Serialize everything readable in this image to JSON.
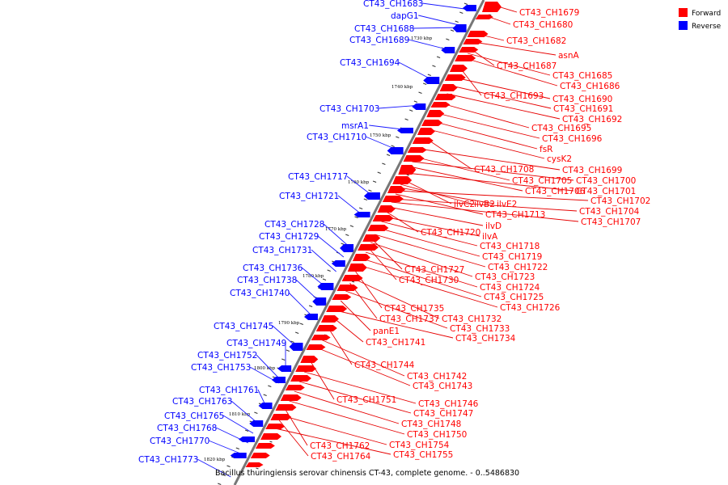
{
  "caption": "Bacillus thuringiensis serovar chinensis CT-43, complete genome. - 0..5486830",
  "legend": [
    {
      "label": "Forward",
      "color": "#ff0000"
    },
    {
      "label": "Reverse",
      "color": "#0000ff"
    }
  ],
  "colors": {
    "forward": "#ff0000",
    "forward_line": "#e60000",
    "reverse": "#0000ff",
    "reverse_line": "#1a1aff",
    "backbone": "#777777"
  },
  "ticks": [
    "1730 kbp",
    "1740 kbp",
    "1750 kbp",
    "1760 kbp",
    "1770 kbp",
    "1780 kbp",
    "1790 kbp",
    "1800 kbp",
    "1810 kbp",
    "1820 kbp"
  ],
  "reverse_labels": [
    "CT43_CH1683",
    "dapG1",
    "CT43_CH1688",
    "CT43_CH1689",
    "CT43_CH1694",
    "CT43_CH1703",
    "msrA1",
    "CT43_CH1710",
    "CT43_CH1717",
    "CT43_CH1721",
    "CT43_CH1728",
    "CT43_CH1729",
    "CT43_CH1731",
    "CT43_CH1736",
    "CT43_CH1738",
    "CT43_CH1740",
    "CT43_CH1745",
    "CT43_CH1749",
    "CT43_CH1752",
    "CT43_CH1753",
    "CT43_CH1761",
    "CT43_CH1763",
    "CT43_CH1765",
    "CT43_CH1768",
    "CT43_CH1770",
    "CT43_CH1773"
  ],
  "forward_labels": [
    "CT43_CH1679",
    "CT43_CH1680",
    "CT43_CH1682",
    "asnA",
    "CT43_CH1687",
    "CT43_CH1685",
    "CT43_CH1686",
    "CT43_CH1693",
    "CT43_CH1690",
    "CT43_CH1691",
    "CT43_CH1692",
    "CT43_CH1695",
    "CT43_CH1696",
    "fsR",
    "cysK2",
    "CT43_CH1708",
    "CT43_CH1699",
    "CT43_CH1705",
    "CT43_CH1700",
    "CT43_CH1706",
    "CT43_CH1701",
    "ilvC2",
    "ilvB2",
    "ilvE2",
    "CT43_CH1702",
    "CT43_CH1713",
    "CT43_CH1704",
    "CT43_CH1707",
    "ilvD",
    "CT43_CH1720",
    "ilvA",
    "CT43_CH1718",
    "CT43_CH1719",
    "CT43_CH1722",
    "CT43_CH1727",
    "CT43_CH1723",
    "CT43_CH1730",
    "CT43_CH1724",
    "CT43_CH1725",
    "CT43_CH1726",
    "CT43_CH1735",
    "CT43_CH1732",
    "CT43_CH1737",
    "CT43_CH1733",
    "panE1",
    "CT43_CH1734",
    "CT43_CH1741",
    "CT43_CH1744",
    "CT43_CH1742",
    "CT43_CH1743",
    "CT43_CH1751",
    "CT43_CH1746",
    "CT43_CH1747",
    "CT43_CH1748",
    "CT43_CH1750",
    "CT43_CH1762",
    "CT43_CH1754",
    "CT43_CH1764",
    "CT43_CH1755"
  ]
}
